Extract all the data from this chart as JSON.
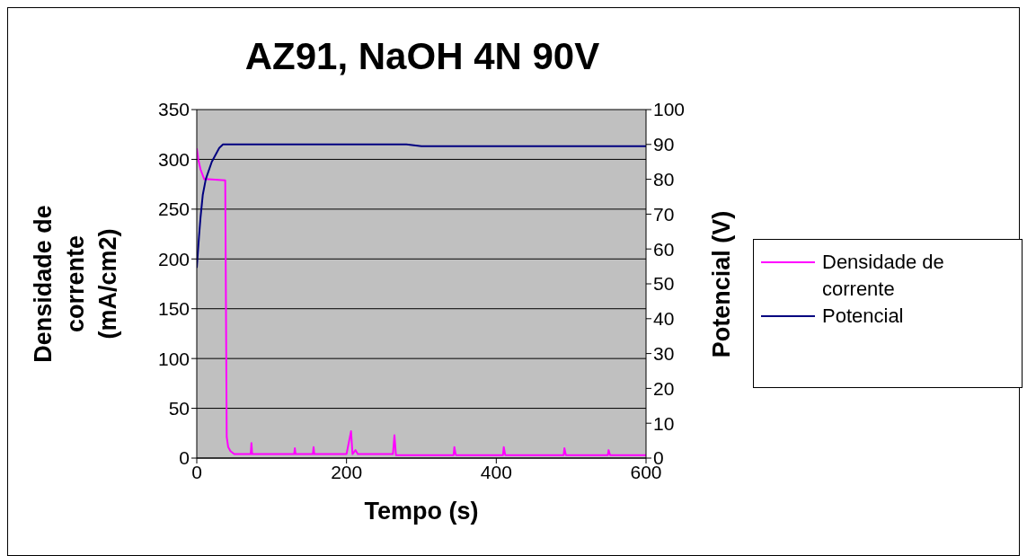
{
  "chart_data": {
    "type": "line",
    "title": "AZ91, NaOH 4N 90V",
    "xlabel": "Tempo (s)",
    "ylabel": "Densidade de corrente (mA/cm2)",
    "y2label": "Potencial (V)",
    "xlim": [
      0,
      600
    ],
    "xticks": [
      0,
      200,
      400,
      600
    ],
    "ylim": [
      0,
      350
    ],
    "yticks": [
      0,
      50,
      100,
      150,
      200,
      250,
      300,
      350
    ],
    "y2lim": [
      0,
      100
    ],
    "y2ticks": [
      0,
      10,
      20,
      30,
      40,
      50,
      60,
      70,
      80,
      90,
      100
    ],
    "grid": "y",
    "legend": "right",
    "marker": "none",
    "line_style": "solid",
    "series": [
      {
        "name": "Densidade de corrente",
        "color": "#ff00ff",
        "x": [
          0,
          2,
          5,
          10,
          15,
          38,
          40,
          42,
          45,
          50,
          72,
          73,
          74,
          130,
          131,
          132,
          155,
          156,
          157,
          200,
          206,
          208,
          212,
          215,
          262,
          264,
          266,
          343,
          344,
          346,
          409,
          410,
          412,
          490,
          491,
          493,
          549,
          550,
          552,
          600
        ],
        "values": [
          311,
          300,
          290,
          280,
          280,
          279,
          21,
          11,
          7,
          4,
          4,
          15,
          4,
          4,
          10,
          4,
          4,
          11,
          4,
          4,
          27,
          4,
          8,
          4,
          4,
          23,
          3,
          3,
          11,
          3,
          3,
          11,
          3,
          3,
          10,
          3,
          3,
          8,
          3,
          3
        ]
      },
      {
        "name": "Potencial",
        "color": "#000080",
        "axis": "y2",
        "x": [
          0,
          3,
          5,
          8,
          12,
          20,
          30,
          35,
          100,
          280,
          300,
          420,
          600
        ],
        "values": [
          54.6,
          63.6,
          69,
          75.5,
          80,
          85,
          89,
          90,
          90,
          90,
          89.5,
          89.5,
          89.5
        ]
      }
    ]
  }
}
